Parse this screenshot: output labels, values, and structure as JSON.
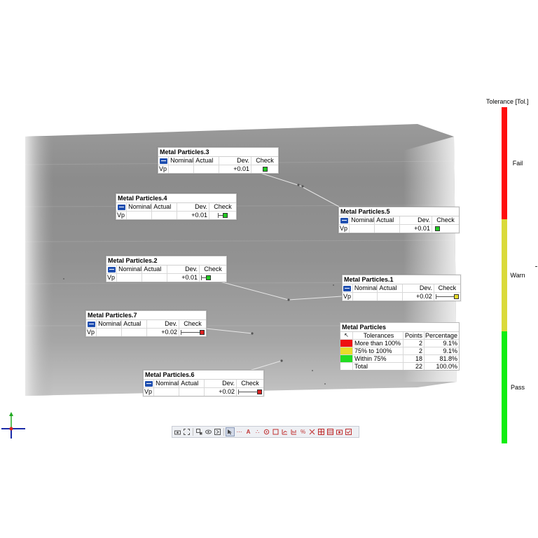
{
  "cards": [
    {
      "title": "Metal Particles.3",
      "label": "Vp",
      "dev": "+0.01",
      "check_color": "#22cc22",
      "gauge": false
    },
    {
      "title": "Metal Particles.4",
      "label": "Vp",
      "dev": "+0.01",
      "check_color": "#22cc22",
      "gauge": true
    },
    {
      "title": "Metal Particles.5",
      "label": "Vp",
      "dev": "+0.01",
      "check_color": "#22cc22",
      "gauge": false
    },
    {
      "title": "Metal Particles.2",
      "label": "Vp",
      "dev": "+0.01",
      "check_color": "#22cc22",
      "gauge": true
    },
    {
      "title": "Metal Particles.1",
      "label": "Vp",
      "dev": "+0.02",
      "check_color": "#e8dc2a",
      "gauge": true
    },
    {
      "title": "Metal Particles.7",
      "label": "Vp",
      "dev": "+0.02",
      "check_color": "#dd2020",
      "gauge": true
    },
    {
      "title": "Metal Particles.6",
      "label": "Vp",
      "dev": "+0.02",
      "check_color": "#dd2020",
      "gauge": true
    }
  ],
  "card_headers": {
    "nominal": "Nominal",
    "actual": "Actual",
    "dev": "Dev.",
    "check": "Check"
  },
  "summary": {
    "title": "Metal Particles",
    "headers": {
      "tolerances": "Tolerances",
      "points": "Points",
      "percentage": "Percentage"
    },
    "rows": [
      {
        "label": "More than 100%",
        "points": "2",
        "percentage": "9.1%",
        "color": "#ee1111"
      },
      {
        "label": "75% to 100%",
        "points": "2",
        "percentage": "9.1%",
        "color": "#e8dc2a"
      },
      {
        "label": "Within 75%",
        "points": "18",
        "percentage": "81.8%",
        "color": "#22dd22"
      },
      {
        "label": "Total",
        "points": "22",
        "percentage": "100.0%",
        "color": ""
      }
    ]
  },
  "legend": {
    "title": "Tolerance [Tol.]",
    "fail_label": "Fail",
    "warn_label": "Warn",
    "pass_label": "Pass",
    "fail_color": "#ff0d0d",
    "warn_color": "#dada3a",
    "pass_color": "#10ee10"
  },
  "toolbar": {
    "icons": [
      "camera-icon",
      "fit-icon",
      "zoom-icon",
      "view-icon",
      "section-icon",
      "pointer-icon",
      "dots-icon",
      "a-icon",
      "s-icon",
      "eye-icon",
      "box-icon",
      "chart-icon",
      "filter-icon",
      "percent-icon",
      "cross-icon",
      "grid-icon",
      "table-icon",
      "camera2-icon",
      "check-icon"
    ]
  }
}
